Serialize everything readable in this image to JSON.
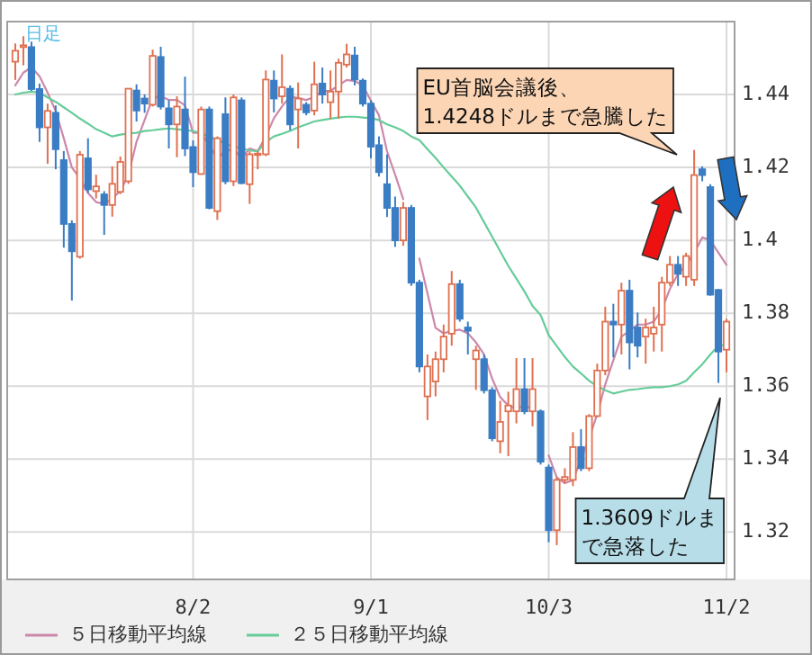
{
  "chart_data": {
    "type": "candlestick",
    "annotations": [
      "日足",
      "EU首脳会議後、1.4248ドルまで急騰した",
      "1.3609ドルまで急落した"
    ],
    "categories": [
      null,
      null,
      null,
      null,
      null,
      null,
      null,
      null,
      null,
      null,
      null,
      null,
      null,
      null,
      null,
      null,
      null,
      null,
      null,
      null,
      null,
      null,
      "8/2",
      null,
      null,
      null,
      null,
      null,
      null,
      null,
      null,
      null,
      null,
      null,
      null,
      null,
      null,
      null,
      null,
      null,
      null,
      null,
      null,
      null,
      "9/1",
      null,
      null,
      null,
      null,
      null,
      null,
      null,
      null,
      null,
      null,
      null,
      null,
      null,
      null,
      null,
      null,
      null,
      null,
      null,
      null,
      null,
      "10/3",
      null,
      null,
      null,
      null,
      null,
      null,
      null,
      null,
      null,
      null,
      null,
      null,
      null,
      null,
      null,
      null,
      null,
      null,
      null,
      null,
      null,
      "11/2"
    ],
    "ohlc": [
      [
        1.449,
        1.454,
        1.444,
        1.452
      ],
      [
        1.453,
        1.456,
        1.448,
        1.4535
      ],
      [
        1.453,
        1.4545,
        1.441,
        1.4415
      ],
      [
        1.4415,
        1.443,
        1.427,
        1.431
      ],
      [
        1.431,
        1.4375,
        1.421,
        1.4355
      ],
      [
        1.435,
        1.437,
        1.4195,
        1.425
      ],
      [
        1.422,
        1.4245,
        1.398,
        1.4045
      ],
      [
        1.4045,
        1.4055,
        1.3835,
        1.397
      ],
      [
        1.3955,
        1.4245,
        1.395,
        1.4235
      ],
      [
        1.4225,
        1.428,
        1.413,
        1.414
      ],
      [
        1.4135,
        1.418,
        1.4115,
        1.4148
      ],
      [
        1.4126,
        1.4135,
        1.4015,
        1.4097
      ],
      [
        1.4097,
        1.4203,
        1.4065,
        1.4155
      ],
      [
        1.4133,
        1.423,
        1.4127,
        1.4215
      ],
      [
        1.4162,
        1.4416,
        1.4155,
        1.4416
      ],
      [
        1.4411,
        1.4428,
        1.4326,
        1.4356
      ],
      [
        1.4389,
        1.44,
        1.435,
        1.4375
      ],
      [
        1.4372,
        1.4523,
        1.4367,
        1.4506
      ],
      [
        1.4503,
        1.4531,
        1.4359,
        1.4367
      ],
      [
        1.4362,
        1.4384,
        1.4252,
        1.4318
      ],
      [
        1.4318,
        1.4395,
        1.4228,
        1.4367
      ],
      [
        1.4359,
        1.4449,
        1.4231,
        1.4252
      ],
      [
        1.4256,
        1.4274,
        1.4146,
        1.4187
      ],
      [
        1.4182,
        1.4367,
        1.418,
        1.4359
      ],
      [
        1.4359,
        1.4367,
        1.4085,
        1.4089
      ],
      [
        1.408,
        1.4285,
        1.4056,
        1.428
      ],
      [
        1.4346,
        1.4392,
        1.4154,
        1.4162
      ],
      [
        1.4162,
        1.44,
        1.4149,
        1.4392
      ],
      [
        1.4384,
        1.4392,
        1.4154,
        1.4157
      ],
      [
        1.4154,
        1.4244,
        1.41,
        1.4236
      ],
      [
        1.4234,
        1.4244,
        1.4195,
        1.4238
      ],
      [
        1.4236,
        1.4466,
        1.4231,
        1.4441
      ],
      [
        1.4438,
        1.4466,
        1.4351,
        1.4389
      ],
      [
        1.4395,
        1.451,
        1.4375,
        1.442
      ],
      [
        1.4416,
        1.4425,
        1.4302,
        1.4318
      ],
      [
        1.4359,
        1.4433,
        1.4252,
        1.4389
      ],
      [
        1.4372,
        1.4379,
        1.4343,
        1.4351
      ],
      [
        1.4356,
        1.449,
        1.4343,
        1.4428
      ],
      [
        1.443,
        1.4474,
        1.4375,
        1.44
      ],
      [
        1.4379,
        1.4466,
        1.4334,
        1.4408
      ],
      [
        1.4408,
        1.4498,
        1.4334,
        1.4487
      ],
      [
        1.4482,
        1.4539,
        1.4474,
        1.451
      ],
      [
        1.4507,
        1.4531,
        1.4425,
        1.4441
      ],
      [
        1.4438,
        1.4444,
        1.4367,
        1.4375
      ],
      [
        1.4375,
        1.4384,
        1.4225,
        1.4257
      ],
      [
        1.4261,
        1.4285,
        1.4175,
        1.4187
      ],
      [
        1.4154,
        1.4236,
        1.4064,
        1.4089
      ],
      [
        1.4089,
        1.412,
        1.3982,
        1.4
      ],
      [
        1.4,
        1.4105,
        1.3985,
        1.4089
      ],
      [
        1.4089,
        1.4097,
        1.3875,
        1.3884
      ],
      [
        1.3884,
        1.3892,
        1.3638,
        1.3654
      ],
      [
        1.3572,
        1.3687,
        1.3507,
        1.3654
      ],
      [
        1.3613,
        1.3695,
        1.3572,
        1.3674
      ],
      [
        1.3674,
        1.3769,
        1.3638,
        1.3736
      ],
      [
        1.3744,
        1.3916,
        1.3711,
        1.388
      ],
      [
        1.388,
        1.3892,
        1.3777,
        1.3785
      ],
      [
        1.3761,
        1.3777,
        1.3687,
        1.3752
      ],
      [
        1.3674,
        1.3711,
        1.359,
        1.3698
      ],
      [
        1.3674,
        1.3687,
        1.358,
        1.3589
      ],
      [
        1.3589,
        1.3597,
        1.3449,
        1.3457
      ],
      [
        1.3449,
        1.356,
        1.3416,
        1.3502
      ],
      [
        1.3531,
        1.3585,
        1.3408,
        1.3547
      ],
      [
        1.3531,
        1.3677,
        1.3498,
        1.3592
      ],
      [
        1.3592,
        1.3677,
        1.3523,
        1.3531
      ],
      [
        1.3531,
        1.3677,
        1.349,
        1.3592
      ],
      [
        1.3531,
        1.3536,
        1.3385,
        1.3393
      ],
      [
        1.3377,
        1.3385,
        1.3172,
        1.3205
      ],
      [
        1.3205,
        1.3351,
        1.3164,
        1.3343
      ],
      [
        1.3343,
        1.3375,
        1.3333,
        1.3351
      ],
      [
        1.3343,
        1.3474,
        1.3326,
        1.3433
      ],
      [
        1.3433,
        1.3482,
        1.3367,
        1.3375
      ],
      [
        1.3375,
        1.3523,
        1.3367,
        1.3518
      ],
      [
        1.3518,
        1.3662,
        1.3515,
        1.3643
      ],
      [
        1.3643,
        1.3818,
        1.363,
        1.3777
      ],
      [
        1.3777,
        1.3826,
        1.3679,
        1.3769
      ],
      [
        1.3769,
        1.3884,
        1.3687,
        1.3862
      ],
      [
        1.3862,
        1.3892,
        1.3646,
        1.372
      ],
      [
        1.3761,
        1.3802,
        1.3679,
        1.3711
      ],
      [
        1.3736,
        1.3785,
        1.3662,
        1.3761
      ],
      [
        1.3744,
        1.3818,
        1.3695,
        1.3761
      ],
      [
        1.3769,
        1.39,
        1.3695,
        1.3884
      ],
      [
        1.3884,
        1.3957,
        1.3875,
        1.3933
      ],
      [
        1.3933,
        1.3957,
        1.3875,
        1.3908
      ],
      [
        1.39,
        1.3966,
        1.3875,
        1.3957
      ],
      [
        1.3892,
        1.4248,
        1.3875,
        1.4179
      ],
      [
        1.4195,
        1.4203,
        1.4162,
        1.4179
      ],
      [
        1.4146,
        1.4154,
        1.3848,
        1.3851
      ],
      [
        1.3864,
        1.3867,
        1.3609,
        1.3695
      ],
      [
        1.37,
        1.3785,
        1.3638,
        1.3777
      ]
    ],
    "colors": [
      "#e07050",
      "#e07050",
      "#3b7dc4",
      "#3b7dc4",
      "#e07050",
      "#3b7dc4",
      "#3b7dc4",
      "#3b7dc4",
      "#e07050",
      "#3b7dc4",
      "#e07050",
      "#3b7dc4",
      "#e07050",
      "#e07050",
      "#e07050",
      "#3b7dc4",
      "#3b7dc4",
      "#e07050",
      "#3b7dc4",
      "#3b7dc4",
      "#e07050",
      "#3b7dc4",
      "#3b7dc4",
      "#e07050",
      "#3b7dc4",
      "#e07050",
      "#3b7dc4",
      "#e07050",
      "#3b7dc4",
      "#e07050",
      "#e07050",
      "#e07050",
      "#3b7dc4",
      "#e07050",
      "#3b7dc4",
      "#e07050",
      "#3b7dc4",
      "#e07050",
      "#3b7dc4",
      "#e07050",
      "#e07050",
      "#e07050",
      "#3b7dc4",
      "#3b7dc4",
      "#3b7dc4",
      "#3b7dc4",
      "#3b7dc4",
      "#3b7dc4",
      "#e07050",
      "#3b7dc4",
      "#3b7dc4",
      "#e07050",
      "#e07050",
      "#e07050",
      "#e07050",
      "#3b7dc4",
      "#3b7dc4",
      "#e07050",
      "#3b7dc4",
      "#3b7dc4",
      "#e07050",
      "#e07050",
      "#e07050",
      "#3b7dc4",
      "#e07050",
      "#3b7dc4",
      "#3b7dc4",
      "#e07050",
      "#e07050",
      "#e07050",
      "#3b7dc4",
      "#e07050",
      "#e07050",
      "#e07050",
      "#3b7dc4",
      "#e07050",
      "#3b7dc4",
      "#3b7dc4",
      "#e07050",
      "#e07050",
      "#e07050",
      "#e07050",
      "#3b7dc4",
      "#e07050",
      "#e07050",
      "#3b7dc4",
      "#3b7dc4",
      "#3b7dc4",
      "#e07050"
    ],
    "series": [
      {
        "name": "５日移動平均線",
        "type": "line",
        "color": "#cc88aa",
        "values": [
          1.4425,
          1.446,
          1.4475,
          1.445,
          1.4405,
          1.4355,
          1.428,
          1.42,
          1.417,
          1.413,
          1.4105,
          1.41,
          1.4115,
          1.4135,
          1.418,
          1.427,
          1.433,
          1.439,
          1.4395,
          1.4385,
          1.4385,
          1.437,
          1.4295,
          1.4295,
          1.426,
          1.4225,
          1.4245,
          1.425,
          1.4225,
          1.4252,
          1.4245,
          1.4285,
          1.4335,
          1.4367,
          1.4395,
          1.439,
          1.4385,
          1.4393,
          1.441,
          1.441,
          1.4425,
          1.444,
          1.4437,
          1.4425,
          1.4383,
          1.4343,
          1.4244,
          1.418,
          1.4113,
          null,
          1.395,
          1.3855,
          1.376,
          1.3745,
          1.3752,
          1.3755,
          1.3745,
          1.372,
          1.3687,
          1.3621,
          1.357,
          1.3547,
          1.3539,
          1.3547,
          1.3539,
          null,
          1.341,
          1.335,
          1.3334,
          1.3342,
          1.34,
          1.3457,
          1.3523,
          1.3605,
          1.3671,
          1.3736,
          1.3752,
          1.3769,
          1.3769,
          1.3777,
          1.381,
          1.3867,
          1.3908,
          1.3933,
          1.3966,
          1.4008,
          1.4,
          1.3966,
          1.3933
        ]
      },
      {
        "name": "２５日移動平均線",
        "type": "line",
        "color": "#66cc99",
        "values": [
          1.44,
          1.4405,
          1.4408,
          1.4405,
          1.4392,
          1.438,
          1.4365,
          1.435,
          1.4334,
          1.432,
          1.4305,
          1.4295,
          1.4285,
          1.429,
          1.4293,
          1.4295,
          1.43,
          1.4302,
          1.4305,
          1.4307,
          1.4305,
          1.4302,
          1.43,
          1.4293,
          1.4285,
          1.4275,
          1.4265,
          1.4258,
          1.4252,
          1.4247,
          1.4244,
          1.427,
          1.4285,
          1.4292,
          1.43,
          1.431,
          1.4318,
          1.4326,
          1.433,
          1.4334,
          1.4337,
          1.4339,
          1.4339,
          1.4337,
          1.4335,
          1.433,
          1.4318,
          1.431,
          1.43,
          1.4285,
          1.4275,
          1.425,
          1.4226,
          1.42,
          1.4175,
          1.415,
          1.412,
          1.409,
          1.405,
          1.401,
          1.397,
          1.393,
          1.3895,
          1.386,
          1.382,
          1.3795,
          1.374,
          1.371,
          1.368,
          1.3654,
          1.3635,
          1.3615,
          1.36,
          1.3589,
          1.358,
          1.3585,
          1.359,
          1.3592,
          1.3595,
          1.3597,
          1.3597,
          1.36,
          1.3605,
          1.3615,
          1.3638,
          1.366,
          1.3687,
          1.3711,
          1.3715
        ]
      }
    ],
    "ylim": [
      1.307,
      1.46
    ],
    "yticks": [
      1.32,
      1.34,
      1.36,
      1.38,
      1.4,
      1.42,
      1.44
    ],
    "grid": true,
    "legend": "bottom"
  }
}
